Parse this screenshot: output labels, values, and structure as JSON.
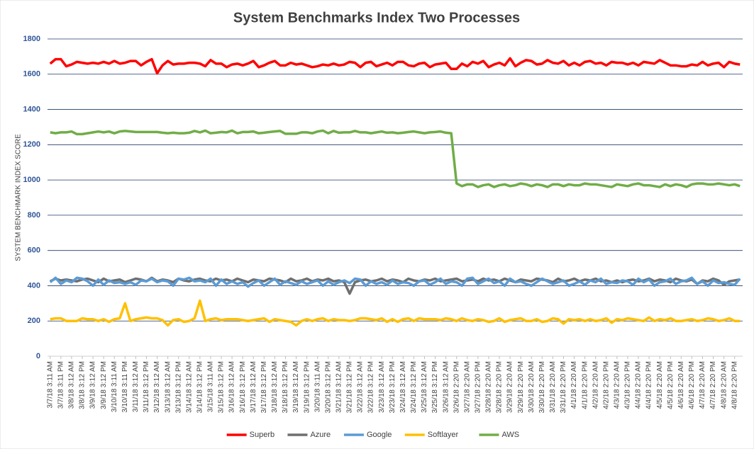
{
  "chart_data": {
    "type": "line",
    "title": "System Benchmarks Index Two Processes",
    "ylabel": "SYSTEM BENCHMARK INDEX SCORE",
    "categories": [
      "3/7/18 3:11 AM",
      null,
      "3/7/18 3:11 PM",
      null,
      "3/8/18 3:12 AM",
      null,
      "3/8/18 3:12 PM",
      null,
      "3/9/18 3:12 AM",
      null,
      "3/9/18 3:12 PM",
      null,
      "3/10/18 3:11 AM",
      null,
      "3/10/18 3:11 PM",
      null,
      "3/11/18 3:12 AM",
      null,
      "3/11/18 3:12 PM",
      null,
      "3/12/18 3:12 AM",
      null,
      "3/13/18 3:12 AM",
      null,
      "3/13/18 3:12 PM",
      null,
      "3/14/18 3:12 AM",
      null,
      "3/14/18 3:12 PM",
      null,
      "3/15/18 3:11 AM",
      null,
      "3/15/18 3:12 PM",
      null,
      "3/16/18 3:12 AM",
      null,
      "3/16/18 3:12 PM",
      null,
      "3/17/18 3:12 AM",
      null,
      "3/17/18 3:12 PM",
      null,
      "3/18/18 3:12 AM",
      null,
      "3/18/18 3:12 PM",
      null,
      "3/19/18 3:12 AM",
      null,
      "3/19/18 3:12 PM",
      null,
      "3/20/18 3:11 AM",
      null,
      "3/20/18 3:12 PM",
      null,
      "3/21/18 3:12 AM",
      null,
      "3/21/18 3:12 PM",
      null,
      "3/22/18 3:12 AM",
      null,
      "3/22/18 3:12 PM",
      null,
      "3/23/18 3:12 AM",
      null,
      "3/23/18 3:12 PM",
      null,
      "3/24/18 3:12 AM",
      null,
      "3/24/18 3:12 PM",
      null,
      "3/25/18 3:12 AM",
      null,
      "3/25/18 3:12 PM",
      null,
      "3/26/18 3:12 AM",
      null,
      "3/26/18 2:20 PM",
      null,
      "3/27/18 2:20 AM",
      null,
      "3/27/18 2:20 PM",
      null,
      "3/28/18 2:20 AM",
      null,
      "3/28/18 2:20 PM",
      null,
      "3/29/18 2:20 AM",
      null,
      "3/29/18 2:20 PM",
      null,
      "3/30/18 2:20 AM",
      null,
      "3/30/18 2:20 PM",
      null,
      "3/31/18 2:20 AM",
      null,
      "3/31/18 2:20 PM",
      null,
      "4/1/18 2:20 AM",
      null,
      "4/1/18 2:20 PM",
      null,
      "4/2/18 2:20 AM",
      null,
      "4/2/18 2:20 PM",
      null,
      "4/3/18 2:20 AM",
      null,
      "4/3/18 2:20 PM",
      null,
      "4/4/18 2:20 AM",
      null,
      "4/4/18 2:20 PM",
      null,
      "4/5/18 2:20 AM",
      null,
      "4/5/18 2:20 PM",
      null,
      "4/6/18 2:20 AM",
      null,
      "4/6/18 2:20 PM",
      null,
      "4/7/18 2:20 AM",
      null,
      "4/7/18 2:20 PM",
      null,
      "4/8/18 2:20 AM",
      null,
      "4/8/18 2:20 PM",
      null
    ],
    "series": [
      {
        "name": "Superb",
        "color": "#ff0000",
        "values": [
          1660,
          1685,
          1685,
          1645,
          1655,
          1670,
          1665,
          1660,
          1665,
          1660,
          1670,
          1660,
          1675,
          1660,
          1665,
          1675,
          1675,
          1650,
          1670,
          1685,
          1605,
          1650,
          1675,
          1655,
          1660,
          1660,
          1665,
          1665,
          1660,
          1645,
          1680,
          1660,
          1660,
          1640,
          1655,
          1660,
          1650,
          1660,
          1675,
          1640,
          1650,
          1665,
          1675,
          1650,
          1650,
          1665,
          1655,
          1660,
          1650,
          1640,
          1645,
          1655,
          1650,
          1660,
          1650,
          1655,
          1670,
          1665,
          1640,
          1665,
          1670,
          1645,
          1655,
          1665,
          1650,
          1670,
          1670,
          1650,
          1645,
          1660,
          1665,
          1640,
          1655,
          1660,
          1665,
          1630,
          1630,
          1660,
          1645,
          1670,
          1660,
          1675,
          1640,
          1655,
          1665,
          1650,
          1690,
          1645,
          1665,
          1680,
          1675,
          1655,
          1660,
          1680,
          1665,
          1660,
          1675,
          1650,
          1665,
          1650,
          1670,
          1675,
          1660,
          1665,
          1650,
          1670,
          1665,
          1665,
          1655,
          1665,
          1650,
          1670,
          1665,
          1660,
          1680,
          1665,
          1650,
          1650,
          1645,
          1645,
          1655,
          1650,
          1670,
          1650,
          1660,
          1665,
          1640,
          1670,
          1660,
          1655
        ]
      },
      {
        "name": "Azure",
        "color": "#6f6f6f",
        "values": [
          425,
          440,
          430,
          435,
          430,
          425,
          435,
          440,
          430,
          420,
          440,
          425,
          430,
          435,
          420,
          430,
          440,
          435,
          425,
          445,
          425,
          435,
          430,
          420,
          440,
          430,
          425,
          435,
          440,
          430,
          425,
          440,
          430,
          435,
          425,
          440,
          430,
          420,
          435,
          430,
          425,
          440,
          435,
          430,
          420,
          440,
          425,
          430,
          440,
          425,
          435,
          430,
          440,
          425,
          430,
          420,
          355,
          420,
          430,
          435,
          425,
          430,
          440,
          425,
          435,
          430,
          420,
          440,
          430,
          425,
          435,
          430,
          440,
          425,
          430,
          435,
          440,
          425,
          430,
          435,
          425,
          440,
          430,
          435,
          425,
          440,
          430,
          420,
          435,
          430,
          425,
          440,
          435,
          430,
          420,
          440,
          425,
          430,
          440,
          425,
          435,
          430,
          440,
          425,
          430,
          420,
          430,
          420,
          430,
          435,
          425,
          430,
          440,
          425,
          435,
          430,
          420,
          440,
          430,
          425,
          435,
          410,
          430,
          425,
          440,
          430,
          405,
          425,
          430,
          435
        ]
      },
      {
        "name": "Google",
        "color": "#5b9bd5",
        "values": [
          420,
          445,
          410,
          430,
          420,
          445,
          440,
          425,
          400,
          435,
          405,
          430,
          415,
          420,
          410,
          420,
          405,
          430,
          425,
          440,
          420,
          430,
          425,
          400,
          440,
          435,
          445,
          425,
          430,
          420,
          440,
          400,
          435,
          410,
          425,
          410,
          420,
          395,
          415,
          430,
          400,
          420,
          440,
          405,
          425,
          415,
          405,
          425,
          410,
          420,
          430,
          400,
          425,
          405,
          420,
          430,
          415,
          440,
          435,
          400,
          425,
          410,
          420,
          405,
          430,
          410,
          420,
          415,
          400,
          425,
          430,
          405,
          420,
          440,
          410,
          425,
          420,
          400,
          440,
          445,
          410,
          425,
          440,
          415,
          425,
          400,
          440,
          420,
          425,
          410,
          400,
          420,
          440,
          425,
          410,
          420,
          430,
          400,
          410,
          425,
          405,
          430,
          420,
          440,
          410,
          420,
          415,
          430,
          425,
          405,
          440,
          420,
          435,
          400,
          420,
          425,
          440,
          410,
          425,
          430,
          445,
          410,
          425,
          400,
          430,
          415,
          420,
          410,
          405,
          440
        ]
      },
      {
        "name": "Softlayer",
        "color": "#ffc000",
        "values": [
          210,
          215,
          215,
          200,
          200,
          200,
          215,
          210,
          210,
          200,
          210,
          195,
          210,
          215,
          300,
          200,
          210,
          215,
          220,
          215,
          215,
          205,
          175,
          205,
          210,
          195,
          200,
          215,
          315,
          200,
          210,
          215,
          205,
          210,
          210,
          210,
          205,
          200,
          205,
          210,
          215,
          195,
          210,
          205,
          200,
          195,
          175,
          200,
          210,
          200,
          210,
          215,
          200,
          210,
          205,
          205,
          200,
          205,
          215,
          215,
          210,
          205,
          215,
          195,
          210,
          195,
          210,
          215,
          200,
          215,
          210,
          210,
          210,
          205,
          215,
          210,
          200,
          215,
          205,
          200,
          210,
          205,
          195,
          200,
          215,
          195,
          205,
          210,
          215,
          200,
          200,
          210,
          195,
          200,
          215,
          210,
          185,
          210,
          205,
          210,
          200,
          210,
          200,
          205,
          215,
          190,
          210,
          205,
          215,
          210,
          205,
          200,
          220,
          200,
          210,
          205,
          215,
          200,
          200,
          205,
          210,
          200,
          205,
          215,
          210,
          200,
          205,
          215,
          200,
          200
        ]
      },
      {
        "name": "AWS",
        "color": "#70ad47",
        "values": [
          1270,
          1265,
          1270,
          1270,
          1275,
          1260,
          1260,
          1265,
          1270,
          1275,
          1270,
          1275,
          1265,
          1275,
          1278,
          1275,
          1272,
          1272,
          1272,
          1272,
          1272,
          1268,
          1265,
          1268,
          1265,
          1265,
          1268,
          1278,
          1270,
          1280,
          1265,
          1268,
          1272,
          1270,
          1280,
          1265,
          1272,
          1272,
          1275,
          1265,
          1268,
          1272,
          1275,
          1278,
          1262,
          1262,
          1262,
          1270,
          1270,
          1265,
          1275,
          1280,
          1265,
          1278,
          1268,
          1270,
          1270,
          1278,
          1270,
          1270,
          1265,
          1270,
          1275,
          1268,
          1270,
          1265,
          1268,
          1272,
          1275,
          1270,
          1265,
          1270,
          1272,
          1275,
          1268,
          1265,
          980,
          965,
          975,
          975,
          960,
          970,
          975,
          960,
          970,
          975,
          965,
          970,
          980,
          975,
          965,
          975,
          970,
          960,
          975,
          975,
          965,
          975,
          970,
          970,
          980,
          975,
          975,
          970,
          965,
          960,
          975,
          970,
          965,
          975,
          980,
          970,
          970,
          965,
          960,
          975,
          965,
          975,
          970,
          960,
          975,
          980,
          980,
          975,
          975,
          980,
          975,
          970,
          975,
          965
        ]
      }
    ],
    "ylim": [
      0,
      1800
    ],
    "yticks": [
      0,
      200,
      400,
      600,
      800,
      1000,
      1200,
      1400,
      1600,
      1800
    ],
    "grid": true,
    "legend": "bottom"
  }
}
